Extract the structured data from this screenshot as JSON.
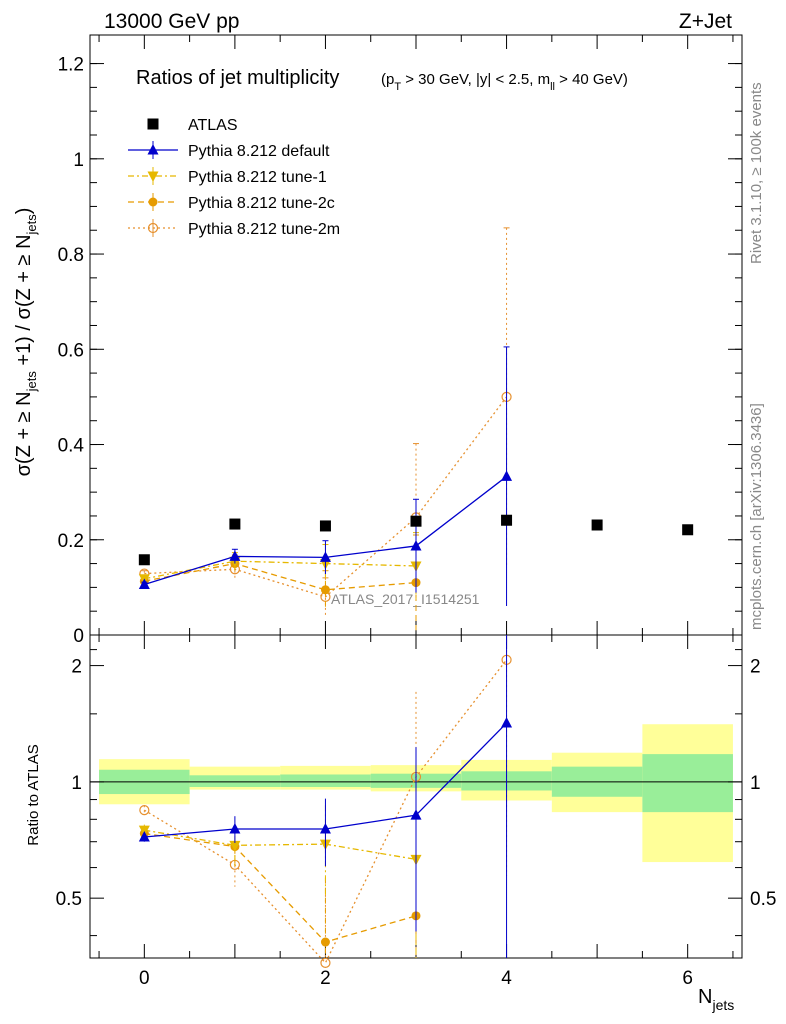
{
  "header": {
    "left": "13000 GeV pp",
    "right": "Z+Jet"
  },
  "side_labels": {
    "rivet": "Rivet 3.1.10, ≥ 100k events",
    "mcplots": "mcplots.cern.ch [arXiv:1306.3436]"
  },
  "watermark": "ATLAS_2017_I1514251",
  "chart_data": [
    {
      "type": "scatter",
      "title": "Ratios of jet multiplicity",
      "title_cuts": "(p_T > 30 GeV, |y| < 2.5, m_ll > 40 GeV)",
      "ylabel": "σ(Z + ≥ N_jets +1) / σ(Z + ≥ N_jets)",
      "xlabel": "N_jets",
      "xlim": [
        -0.6,
        6.6
      ],
      "ylim": [
        0,
        1.26
      ],
      "y_ticks": [
        0,
        0.2,
        0.4,
        0.6,
        0.8,
        1,
        1.2
      ],
      "y_tick_labels": [
        "0",
        "0.2",
        "0.4",
        "0.6",
        "0.8",
        "1",
        "1.2"
      ],
      "legend_position": "top-left",
      "series": [
        {
          "name": "ATLAS",
          "marker": "square",
          "color": "#000000",
          "x": [
            0,
            1,
            2,
            3,
            4,
            5,
            6
          ],
          "values": [
            0.158,
            0.233,
            0.229,
            0.239,
            0.241,
            0.231,
            0.221
          ]
        },
        {
          "name": "Pythia 8.212 default",
          "marker": "triangle-up",
          "color": "#0000cc",
          "line": "solid",
          "x": [
            0,
            1,
            2,
            3,
            4
          ],
          "values": [
            0.106,
            0.165,
            0.163,
            0.187,
            0.333
          ],
          "errors": [
            0.005,
            0.015,
            0.035,
            0.098,
            0.272
          ]
        },
        {
          "name": "Pythia 8.212 tune-1",
          "marker": "triangle-down",
          "color": "#e6b800",
          "line": "dashdot",
          "x": [
            0,
            1,
            2,
            3
          ],
          "values": [
            0.118,
            0.155,
            0.15,
            0.145
          ],
          "errors": [
            0.006,
            0.018,
            0.04,
            0.07
          ]
        },
        {
          "name": "Pythia 8.212 tune-2c",
          "marker": "circle",
          "color": "#e69b00",
          "line": "dashed",
          "x": [
            0,
            1,
            2,
            3
          ],
          "values": [
            0.113,
            0.15,
            0.095,
            0.11
          ],
          "errors": [
            0.006,
            0.018,
            0.04,
            0.1
          ]
        },
        {
          "name": "Pythia 8.212 tune-2m",
          "marker": "open-circle",
          "color": "#e6902e",
          "line": "dotted",
          "x": [
            0,
            1,
            2,
            3,
            4
          ],
          "values": [
            0.129,
            0.138,
            0.08,
            0.247,
            0.5
          ],
          "errors": [
            0.006,
            0.018,
            0.04,
            0.155,
            0.355
          ]
        }
      ]
    },
    {
      "type": "scatter",
      "ylabel": "Ratio to ATLAS",
      "xlabel": "N_jets",
      "xlim": [
        -0.6,
        6.6
      ],
      "ylim": [
        0.35,
        2.4
      ],
      "y_scale": "log",
      "x_ticks": [
        0,
        2,
        4,
        6
      ],
      "x_tick_labels": [
        "0",
        "2",
        "4",
        "6"
      ],
      "y_ticks": [
        0.5,
        1,
        2
      ],
      "y_tick_labels": [
        "0.5",
        "1",
        "2"
      ],
      "uncertainty_bands": {
        "bins": [
          [
            -0.5,
            0.5
          ],
          [
            0.5,
            1.5
          ],
          [
            1.5,
            2.5
          ],
          [
            2.5,
            3.5
          ],
          [
            3.5,
            4.5
          ],
          [
            4.5,
            5.5
          ],
          [
            5.5,
            6.5
          ]
        ],
        "stat_lo": [
          0.93,
          0.97,
          0.97,
          0.965,
          0.95,
          0.915,
          0.835
        ],
        "stat_hi": [
          1.075,
          1.04,
          1.045,
          1.05,
          1.065,
          1.095,
          1.18
        ],
        "total_lo": [
          0.875,
          0.955,
          0.955,
          0.945,
          0.895,
          0.835,
          0.62
        ],
        "total_hi": [
          1.145,
          1.095,
          1.1,
          1.105,
          1.14,
          1.19,
          1.41
        ],
        "stat_color": "#99ee99",
        "total_color": "#ffff99"
      },
      "series": [
        {
          "name": "Pythia 8.212 default",
          "color": "#0000cc",
          "x": [
            0,
            1,
            2,
            3,
            4
          ],
          "values": [
            0.72,
            0.755,
            0.755,
            0.82,
            1.42
          ],
          "errors": [
            0.02,
            0.06,
            0.15,
            0.41,
            1.2
          ]
        },
        {
          "name": "Pythia 8.212 tune-1",
          "color": "#e6b800",
          "x": [
            0,
            1,
            2,
            3
          ],
          "values": [
            0.75,
            0.685,
            0.69,
            0.63
          ],
          "errors": [
            0.025,
            0.08,
            0.18,
            0.3
          ]
        },
        {
          "name": "Pythia 8.212 tune-2c",
          "color": "#e69b00",
          "x": [
            0,
            1,
            2,
            3
          ],
          "values": [
            0.735,
            0.68,
            0.385,
            0.45
          ],
          "errors": [
            0.025,
            0.08,
            0.18,
            0.4
          ]
        },
        {
          "name": "Pythia 8.212 tune-2m",
          "color": "#e6902e",
          "x": [
            0,
            1,
            2,
            3,
            4
          ],
          "values": [
            0.845,
            0.61,
            0.34,
            1.03,
            2.07
          ],
          "errors": [
            0.025,
            0.075,
            0.17,
            0.68,
            1.5
          ]
        }
      ]
    }
  ]
}
